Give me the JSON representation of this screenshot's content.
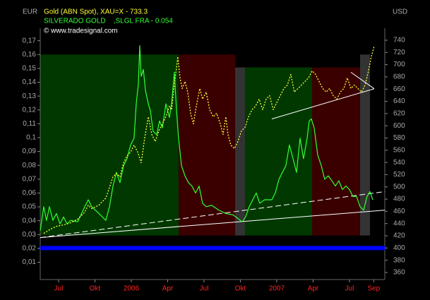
{
  "chart_data": {
    "type": "line",
    "y_unit_label": "EUR",
    "y2_unit_label": "USD",
    "credit": "© www.tradesignal.com",
    "xlim": [
      2005.374,
      2007.743
    ],
    "xticks": [
      {
        "value": 2005.5,
        "label": "Jul"
      },
      {
        "value": 2005.75,
        "label": "Okt"
      },
      2006,
      {
        "value": 2006.25,
        "label": "Apr"
      },
      {
        "value": 2006.5,
        "label": "Jul"
      },
      {
        "value": 2006.75,
        "label": "Okt"
      },
      2007,
      {
        "value": 2007.25,
        "label": "Apr"
      },
      {
        "value": 2007.5,
        "label": "Jul"
      },
      {
        "value": 2007.667,
        "label": "Sep"
      }
    ],
    "ylim": [
      -0.0025,
      0.179
    ],
    "yticks": [
      {
        "value": 0.01,
        "label": "0,01"
      },
      {
        "value": 0.02,
        "label": "0,02"
      },
      {
        "value": 0.03,
        "label": "0,03"
      },
      {
        "value": 0.04,
        "label": "0,04"
      },
      {
        "value": 0.05,
        "label": "0,05"
      },
      {
        "value": 0.06,
        "label": "0,06"
      },
      {
        "value": 0.07,
        "label": "0,07"
      },
      {
        "value": 0.08,
        "label": "0,08"
      },
      {
        "value": 0.09,
        "label": "0,09"
      },
      {
        "value": 0.1,
        "label": "0,1"
      },
      {
        "value": 0.11,
        "label": "0,11"
      },
      {
        "value": 0.12,
        "label": "0,12"
      },
      {
        "value": 0.13,
        "label": "0,13"
      },
      {
        "value": 0.14,
        "label": "0,14"
      },
      {
        "value": 0.15,
        "label": "0,15"
      },
      {
        "value": 0.16,
        "label": "0,16"
      },
      {
        "value": 0.17,
        "label": "0,17"
      }
    ],
    "y2lim": [
      348.4,
      759.6
    ],
    "y2ticks": [
      360,
      380,
      400,
      420,
      440,
      460,
      480,
      500,
      520,
      540,
      560,
      580,
      600,
      620,
      640,
      660,
      680,
      700,
      720,
      740
    ],
    "grid": false,
    "bands": [
      {
        "x": [
          2005.374,
          2006.325
        ],
        "y": [
          0.0293,
          0.16
        ],
        "color": "#003800"
      },
      {
        "x": [
          2006.325,
          2006.714
        ],
        "y": [
          0.0293,
          0.16
        ],
        "color": "#3a0000"
      },
      {
        "x": [
          2006.714,
          2006.782
        ],
        "y": [
          0.0293,
          0.1507
        ],
        "color": "#333333"
      },
      {
        "x": [
          2006.782,
          2007.243
        ],
        "y": [
          0.0293,
          0.1507
        ],
        "color": "#003800"
      },
      {
        "x": [
          2007.243,
          2007.573
        ],
        "y": [
          0.0293,
          0.1507
        ],
        "color": "#3a0000"
      },
      {
        "x": [
          2007.573,
          2007.641
        ],
        "y": [
          0.0293,
          0.16
        ],
        "color": "#333333"
      }
    ],
    "hlines": [
      {
        "value": 400,
        "axis": "y2",
        "color": "#0000ff"
      }
    ],
    "trendlines": [
      {
        "x": [
          2005.374,
          2007.743
        ],
        "y": [
          0.0278,
          0.0476
        ],
        "dash": false
      },
      {
        "x": [
          2005.374,
          2007.743
        ],
        "y": [
          0.0278,
          0.061
        ],
        "dash": true
      },
      {
        "x": [
          2006.966,
          2007.67
        ],
        "y": [
          0.1135,
          0.1353
        ],
        "dash": false
      },
      {
        "x": [
          2007.51,
          2007.67
        ],
        "y": [
          0.1472,
          0.1353
        ],
        "dash": false
      }
    ],
    "series": [
      {
        "name": "SILVERADO GOLD    ,SLGL FRA - 0.054",
        "color": "#33ff33",
        "axis": "y",
        "dash": false,
        "x": [
          2005.374,
          2005.398,
          2005.417,
          2005.437,
          2005.461,
          2005.485,
          2005.51,
          2005.534,
          2005.558,
          2005.583,
          2005.631,
          2005.68,
          2005.704,
          2005.728,
          2005.777,
          2005.825,
          2005.85,
          2005.874,
          2005.898,
          2005.922,
          2005.947,
          2005.971,
          2005.995,
          2006.019,
          2006.034,
          2006.049,
          2006.058,
          2006.068,
          2006.083,
          2006.097,
          2006.117,
          2006.131,
          2006.15,
          2006.175,
          2006.194,
          2006.214,
          2006.238,
          2006.262,
          2006.277,
          2006.296,
          2006.311,
          2006.325,
          2006.345,
          2006.369,
          2006.393,
          2006.417,
          2006.442,
          2006.466,
          2006.49,
          2006.515,
          2006.553,
          2006.602,
          2006.65,
          2006.699,
          2006.738,
          2006.762,
          2006.786,
          2006.811,
          2006.835,
          2006.859,
          2006.883,
          2006.917,
          2006.966,
          2006.99,
          2007.015,
          2007.039,
          2007.063,
          2007.087,
          2007.112,
          2007.136,
          2007.16,
          2007.184,
          2007.209,
          2007.223,
          2007.238,
          2007.257,
          2007.282,
          2007.306,
          2007.33,
          2007.354,
          2007.379,
          2007.403,
          2007.427,
          2007.451,
          2007.476,
          2007.5,
          2007.524,
          2007.549,
          2007.573,
          2007.597,
          2007.621,
          2007.641,
          2007.66
        ],
        "values": [
          0.0328,
          0.0501,
          0.0402,
          0.0501,
          0.0402,
          0.0452,
          0.0377,
          0.0427,
          0.0377,
          0.0402,
          0.0392,
          0.0501,
          0.0551,
          0.0501,
          0.0452,
          0.0402,
          0.0501,
          0.065,
          0.0749,
          0.0675,
          0.0798,
          0.0848,
          0.0947,
          0.0996,
          0.1244,
          0.1393,
          0.1665,
          0.1442,
          0.1492,
          0.1343,
          0.1244,
          0.1195,
          0.1046,
          0.1021,
          0.112,
          0.1071,
          0.1244,
          0.1145,
          0.1244,
          0.1472,
          0.1195,
          0.0996,
          0.0798,
          0.0724,
          0.0675,
          0.065,
          0.06,
          0.065,
          0.0526,
          0.0501,
          0.0511,
          0.0476,
          0.0452,
          0.0442,
          0.0412,
          0.0392,
          0.0427,
          0.0501,
          0.0551,
          0.06,
          0.0526,
          0.0551,
          0.0551,
          0.06,
          0.0699,
          0.0749,
          0.0798,
          0.0947,
          0.0848,
          0.0749,
          0.0996,
          0.0848,
          0.0996,
          0.112,
          0.1135,
          0.1071,
          0.0873,
          0.0798,
          0.0699,
          0.0724,
          0.0689,
          0.065,
          0.0689,
          0.0625,
          0.065,
          0.0625,
          0.0575,
          0.0575,
          0.0501,
          0.0476,
          0.0575,
          0.061,
          0.0551
        ]
      },
      {
        "name": "Gold (ABN Spot), XAU=X - 733.3",
        "color": "#ffff33",
        "axis": "y2",
        "dash": true,
        "x": [
          2005.398,
          2005.437,
          2005.485,
          2005.534,
          2005.583,
          2005.631,
          2005.68,
          2005.704,
          2005.728,
          2005.777,
          2005.825,
          2005.85,
          2005.874,
          2005.898,
          2005.922,
          2005.947,
          2005.971,
          2005.995,
          2006.019,
          2006.044,
          2006.068,
          2006.092,
          2006.117,
          2006.141,
          2006.165,
          2006.189,
          2006.214,
          2006.238,
          2006.262,
          2006.277,
          2006.296,
          2006.311,
          2006.32,
          2006.335,
          2006.35,
          2006.369,
          2006.388,
          2006.408,
          2006.427,
          2006.447,
          2006.471,
          2006.49,
          2006.515,
          2006.539,
          2006.563,
          2006.587,
          2006.612,
          2006.631,
          2006.65,
          2006.665,
          2006.684,
          2006.709,
          2006.733,
          2006.757,
          2006.782,
          2006.806,
          2006.83,
          2006.854,
          2006.879,
          2006.903,
          2006.927,
          2006.951,
          2006.976,
          2007.0,
          2007.024,
          2007.049,
          2007.073,
          2007.097,
          2007.121,
          2007.146,
          2007.17,
          2007.194,
          2007.218,
          2007.243,
          2007.267,
          2007.291,
          2007.316,
          2007.34,
          2007.364,
          2007.388,
          2007.413,
          2007.437,
          2007.461,
          2007.485,
          2007.51,
          2007.534,
          2007.558,
          2007.583,
          2007.607,
          2007.631,
          2007.65,
          2007.67
        ],
        "values": [
          423.9,
          429.7,
          435.5,
          437.8,
          441.3,
          447.0,
          458.6,
          470.2,
          464.4,
          470.2,
          481.7,
          499.1,
          516.4,
          522.2,
          516.4,
          539.5,
          551.1,
          556.9,
          568.4,
          556.9,
          539.5,
          580.0,
          614.7,
          585.8,
          574.2,
          591.6,
          603.2,
          614.7,
          632.1,
          626.3,
          666.7,
          695.6,
          712.9,
          678.3,
          661.0,
          672.5,
          655.2,
          620.5,
          603.2,
          632.1,
          661.0,
          643.6,
          655.2,
          626.3,
          614.7,
          620.5,
          603.2,
          585.8,
          614.7,
          585.8,
          568.4,
          562.7,
          574.2,
          591.6,
          597.4,
          614.7,
          626.3,
          632.1,
          643.6,
          626.3,
          643.6,
          649.4,
          626.3,
          637.9,
          649.4,
          661.0,
          666.7,
          684.0,
          655.2,
          661.0,
          666.7,
          672.5,
          678.3,
          689.8,
          684.0,
          672.5,
          661.0,
          655.2,
          661.0,
          649.4,
          643.6,
          655.2,
          661.0,
          678.3,
          661.0,
          666.7,
          661.0,
          655.2,
          666.7,
          689.8,
          712.9,
          730.3
        ]
      }
    ]
  }
}
